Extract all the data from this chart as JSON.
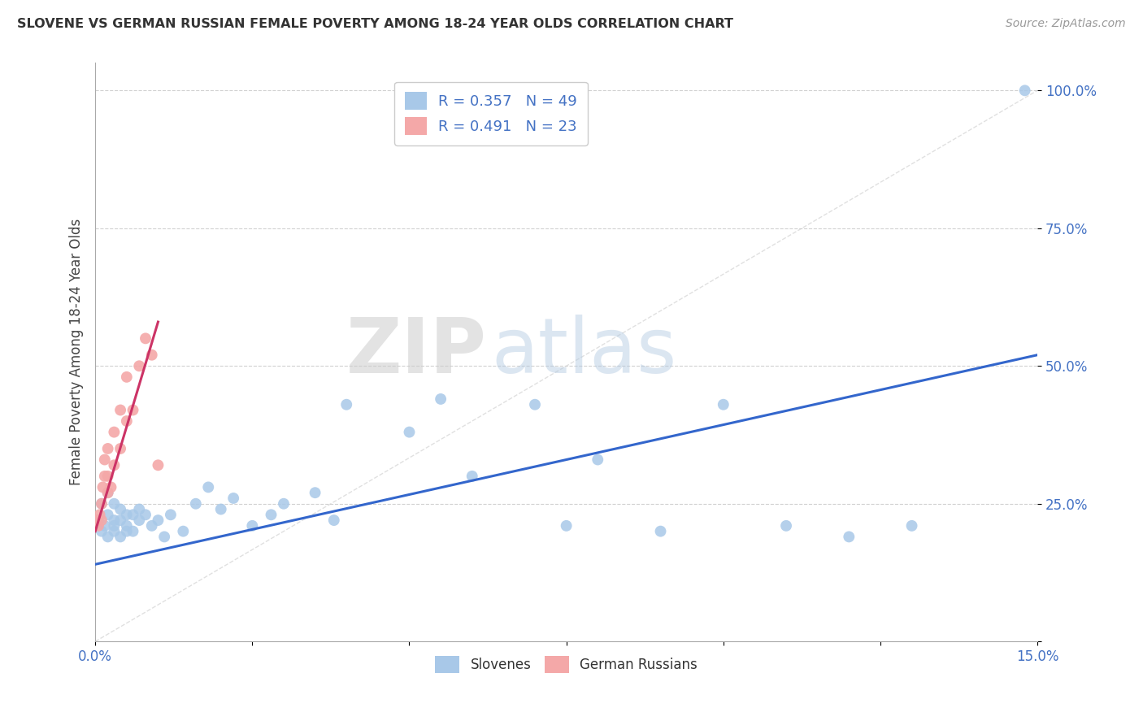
{
  "title": "SLOVENE VS GERMAN RUSSIAN FEMALE POVERTY AMONG 18-24 YEAR OLDS CORRELATION CHART",
  "source": "Source: ZipAtlas.com",
  "ylabel": "Female Poverty Among 18-24 Year Olds",
  "watermark_zip": "ZIP",
  "watermark_atlas": "atlas",
  "slovenes_R": 0.357,
  "slovenes_N": 49,
  "german_russians_R": 0.491,
  "german_russians_N": 23,
  "slovenes_color": "#a8c8e8",
  "german_russians_color": "#f4a8a8",
  "slovenes_line_color": "#3366cc",
  "german_russians_line_color": "#cc3366",
  "xmin": 0.0,
  "xmax": 0.15,
  "ymin": 0.0,
  "ymax": 1.05,
  "background_color": "#ffffff",
  "grid_color": "#cccccc",
  "slovenes_x": [
    0.0005,
    0.001,
    0.001,
    0.0015,
    0.002,
    0.002,
    0.002,
    0.003,
    0.003,
    0.003,
    0.003,
    0.004,
    0.004,
    0.004,
    0.005,
    0.005,
    0.005,
    0.006,
    0.006,
    0.007,
    0.007,
    0.008,
    0.009,
    0.01,
    0.011,
    0.012,
    0.014,
    0.016,
    0.018,
    0.02,
    0.022,
    0.025,
    0.028,
    0.03,
    0.035,
    0.038,
    0.04,
    0.05,
    0.055,
    0.06,
    0.07,
    0.075,
    0.08,
    0.09,
    0.1,
    0.11,
    0.12,
    0.13,
    0.148
  ],
  "slovenes_y": [
    0.22,
    0.2,
    0.25,
    0.21,
    0.19,
    0.23,
    0.27,
    0.2,
    0.22,
    0.25,
    0.21,
    0.19,
    0.22,
    0.24,
    0.2,
    0.23,
    0.21,
    0.2,
    0.23,
    0.24,
    0.22,
    0.23,
    0.21,
    0.22,
    0.19,
    0.23,
    0.2,
    0.25,
    0.28,
    0.24,
    0.26,
    0.21,
    0.23,
    0.25,
    0.27,
    0.22,
    0.43,
    0.38,
    0.44,
    0.3,
    0.43,
    0.21,
    0.33,
    0.2,
    0.43,
    0.21,
    0.19,
    0.21,
    1.0
  ],
  "german_russians_x": [
    0.0003,
    0.0005,
    0.0007,
    0.001,
    0.001,
    0.0012,
    0.0015,
    0.0015,
    0.002,
    0.002,
    0.002,
    0.0025,
    0.003,
    0.003,
    0.004,
    0.004,
    0.005,
    0.005,
    0.006,
    0.007,
    0.008,
    0.009,
    0.01
  ],
  "german_russians_y": [
    0.22,
    0.21,
    0.23,
    0.22,
    0.25,
    0.28,
    0.3,
    0.33,
    0.27,
    0.3,
    0.35,
    0.28,
    0.32,
    0.38,
    0.35,
    0.42,
    0.4,
    0.48,
    0.42,
    0.5,
    0.55,
    0.52,
    0.32
  ],
  "slovenes_line_x0": 0.0,
  "slovenes_line_y0": 0.14,
  "slovenes_line_x1": 0.15,
  "slovenes_line_y1": 0.52,
  "german_line_x0": 0.0,
  "german_line_y0": 0.2,
  "german_line_x1": 0.01,
  "german_line_y1": 0.58
}
